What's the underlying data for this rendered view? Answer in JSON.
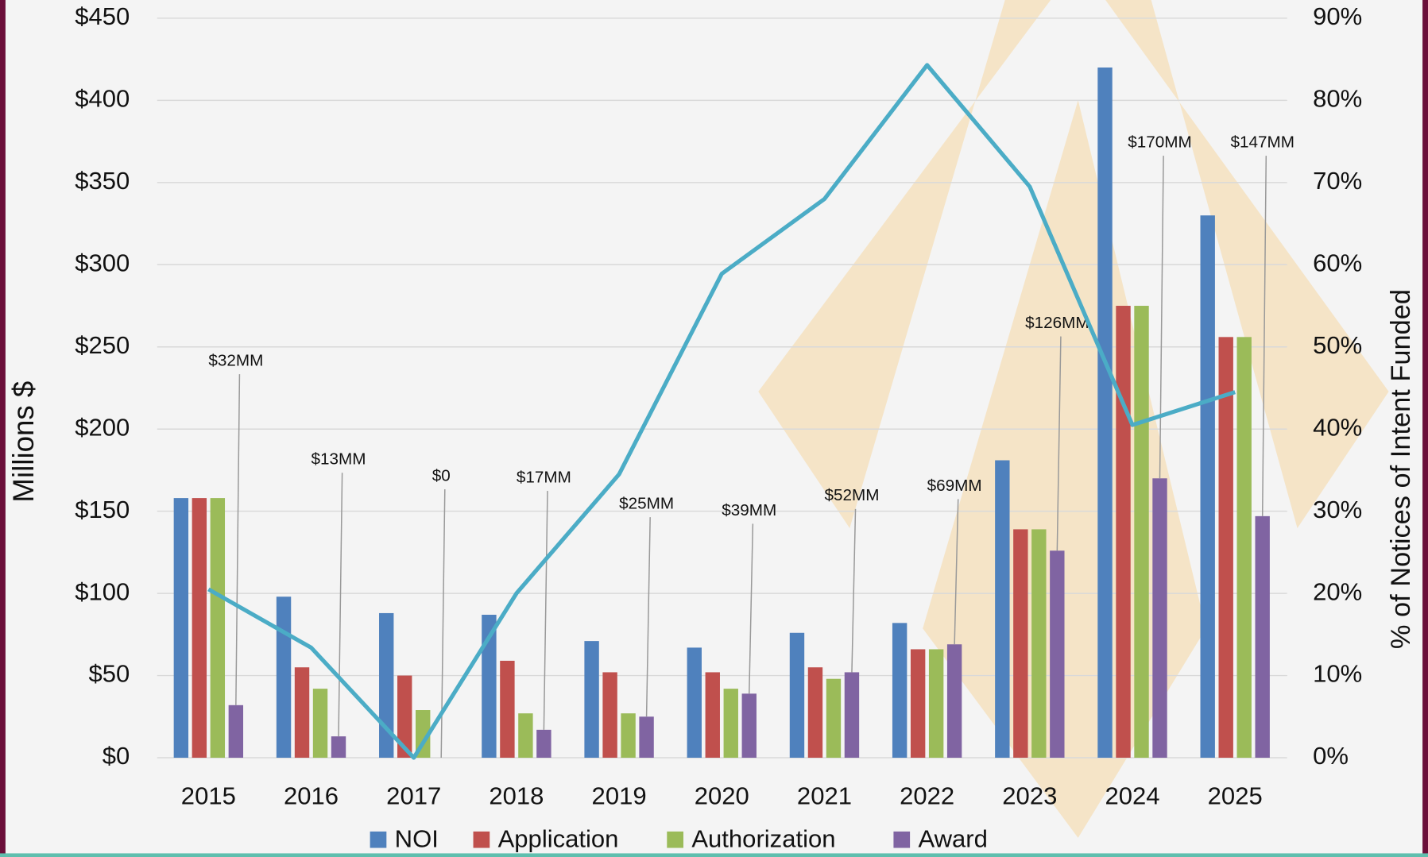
{
  "chart_data": {
    "type": "bar",
    "categories": [
      "2015",
      "2016",
      "2017",
      "2018",
      "2019",
      "2020",
      "2021",
      "2022",
      "2023",
      "2024",
      "2025"
    ],
    "series": [
      {
        "name": "NOI",
        "color": "#4f81bd",
        "values": [
          158,
          98,
          88,
          87,
          71,
          67,
          76,
          82,
          181,
          420,
          330
        ]
      },
      {
        "name": "Application",
        "color": "#c0504d",
        "values": [
          158,
          55,
          50,
          59,
          52,
          52,
          55,
          66,
          139,
          275,
          256
        ]
      },
      {
        "name": "Authorization",
        "color": "#9bbb59",
        "values": [
          158,
          42,
          29,
          27,
          27,
          42,
          48,
          66,
          139,
          275,
          256
        ]
      },
      {
        "name": "Award",
        "color": "#8064a2",
        "values": [
          32,
          13,
          0,
          17,
          25,
          39,
          52,
          69,
          126,
          170,
          147
        ],
        "value_labels": [
          "$32MM",
          "$13MM",
          "$0",
          "$17MM",
          "$25MM",
          "$39MM",
          "$52MM",
          "$69MM",
          "$126MM",
          "$170MM",
          "$147MM"
        ]
      }
    ],
    "line": {
      "type": "line",
      "axis": "y2",
      "color": "#4bacc6",
      "values": [
        20.5,
        13.4,
        0,
        20,
        34.5,
        58.9,
        68,
        84.3,
        69.5,
        40.5,
        44.5
      ]
    },
    "y_label": "Millions $",
    "y2_label": "% of Notices of Intent Funded",
    "ylim": [
      0,
      450
    ],
    "yticks": [
      {
        "value": 0,
        "label": "$0"
      },
      {
        "value": 50,
        "label": "$50"
      },
      {
        "value": 100,
        "label": "$100"
      },
      {
        "value": 150,
        "label": "$150"
      },
      {
        "value": 200,
        "label": "$200"
      },
      {
        "value": 250,
        "label": "$250"
      },
      {
        "value": 300,
        "label": "$300"
      },
      {
        "value": 350,
        "label": "$350"
      },
      {
        "value": 400,
        "label": "$400"
      },
      {
        "value": 450,
        "label": "$450"
      }
    ],
    "y2lim": [
      0,
      90
    ],
    "y2ticks": [
      {
        "value": 0,
        "label": "0%"
      },
      {
        "value": 10,
        "label": "10%"
      },
      {
        "value": 20,
        "label": "20%"
      },
      {
        "value": 30,
        "label": "30%"
      },
      {
        "value": 40,
        "label": "40%"
      },
      {
        "value": 50,
        "label": "50%"
      },
      {
        "value": 60,
        "label": "60%"
      },
      {
        "value": 70,
        "label": "70%"
      },
      {
        "value": 80,
        "label": "80%"
      },
      {
        "value": 90,
        "label": "90%"
      }
    ],
    "grid": true
  }
}
